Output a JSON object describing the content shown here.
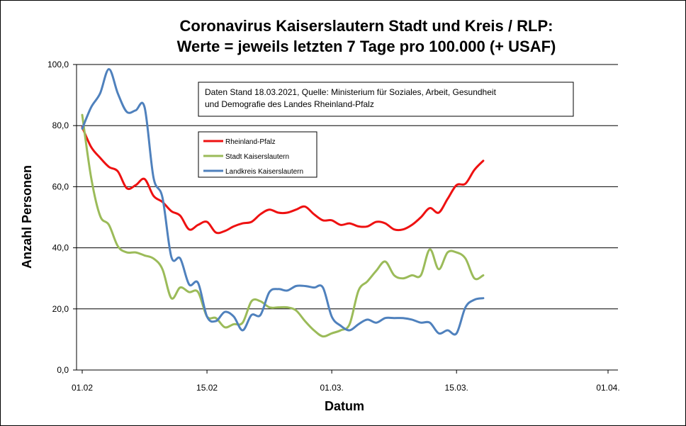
{
  "chart_data": {
    "type": "line",
    "title_lines": [
      "Coronavirus Kaiserslautern Stadt und Kreis / RLP:",
      "Werte = jeweils letzten 7 Tage pro 100.000 (+ USAF)"
    ],
    "xlabel": "Datum",
    "ylabel": "Anzahl Personen",
    "ylim": [
      0,
      100
    ],
    "y_ticks": [
      "0,0",
      "20,0",
      "40,0",
      "60,0",
      "80,0",
      "100,0"
    ],
    "x_tick_labels": [
      "01.02",
      "15.02",
      "01.03.",
      "15.03.",
      "01.04."
    ],
    "annotation": [
      "Daten Stand 18.03.2021, Quelle: Ministerium für Soziales, Arbeit, Gesundheit",
      "und Demografie des Landes Rheinland-Pfalz"
    ],
    "grid": "horizontal",
    "legend_placement": "upper-left",
    "x": [
      "01.02.",
      "02.02.",
      "03.02.",
      "04.02.",
      "05.02.",
      "06.02.",
      "07.02.",
      "08.02.",
      "09.02.",
      "10.02.",
      "11.02.",
      "12.02.",
      "13.02.",
      "14.02.",
      "15.02.",
      "16.02.",
      "17.02.",
      "18.02.",
      "19.02.",
      "20.02.",
      "21.02.",
      "22.02.",
      "23.02.",
      "24.02.",
      "25.02.",
      "26.02.",
      "27.02.",
      "28.02.",
      "01.03.",
      "02.03.",
      "03.03.",
      "04.03.",
      "05.03.",
      "06.03.",
      "07.03.",
      "08.03.",
      "09.03.",
      "10.03.",
      "11.03.",
      "12.03.",
      "13.03.",
      "14.03.",
      "15.03.",
      "16.03.",
      "17.03.",
      "18.03."
    ],
    "series": [
      {
        "name": "Rheinland-Pfalz",
        "color": "#ee1111",
        "values": [
          79.5,
          73.0,
          69.5,
          66.5,
          65.0,
          59.5,
          60.5,
          62.5,
          57.0,
          55.0,
          52.0,
          50.5,
          46.0,
          47.5,
          48.5,
          45.0,
          45.5,
          47.0,
          48.0,
          48.5,
          51.0,
          52.5,
          51.5,
          51.5,
          52.5,
          53.5,
          51.0,
          49.0,
          49.0,
          47.5,
          48.0,
          47.0,
          47.0,
          48.5,
          48.0,
          46.0,
          46.0,
          47.5,
          50.0,
          53.0,
          51.5,
          56.0,
          60.5,
          61.0,
          65.5,
          68.5
        ]
      },
      {
        "name": "Stadt Kaiserslautern",
        "color": "#9bbb59",
        "values": [
          83.5,
          63.0,
          50.5,
          47.5,
          40.5,
          38.5,
          38.5,
          37.5,
          36.5,
          33.0,
          23.5,
          27.0,
          25.5,
          25.5,
          17.5,
          17.0,
          14.0,
          15.0,
          15.5,
          22.5,
          22.5,
          20.5,
          20.5,
          20.5,
          19.5,
          16.0,
          13.0,
          11.0,
          12.0,
          13.0,
          15.0,
          26.0,
          29.0,
          32.5,
          35.5,
          31.0,
          30.0,
          31.0,
          31.0,
          39.5,
          33.0,
          38.5,
          38.5,
          36.5,
          30.0,
          31.0
        ]
      },
      {
        "name": "Landkreis Kaiserslautern",
        "color": "#4f81bd",
        "values": [
          79.0,
          86.0,
          90.5,
          98.5,
          90.5,
          84.5,
          85.0,
          86.0,
          63.0,
          56.5,
          37.0,
          36.5,
          28.0,
          28.5,
          17.5,
          16.0,
          19.0,
          17.5,
          13.0,
          18.0,
          18.0,
          25.5,
          26.5,
          26.0,
          27.5,
          27.5,
          27.0,
          27.0,
          17.5,
          14.5,
          13.0,
          15.0,
          16.5,
          15.5,
          17.0,
          17.0,
          17.0,
          16.5,
          15.5,
          15.5,
          12.0,
          13.0,
          12.0,
          20.5,
          23.0,
          23.5
        ]
      }
    ]
  }
}
